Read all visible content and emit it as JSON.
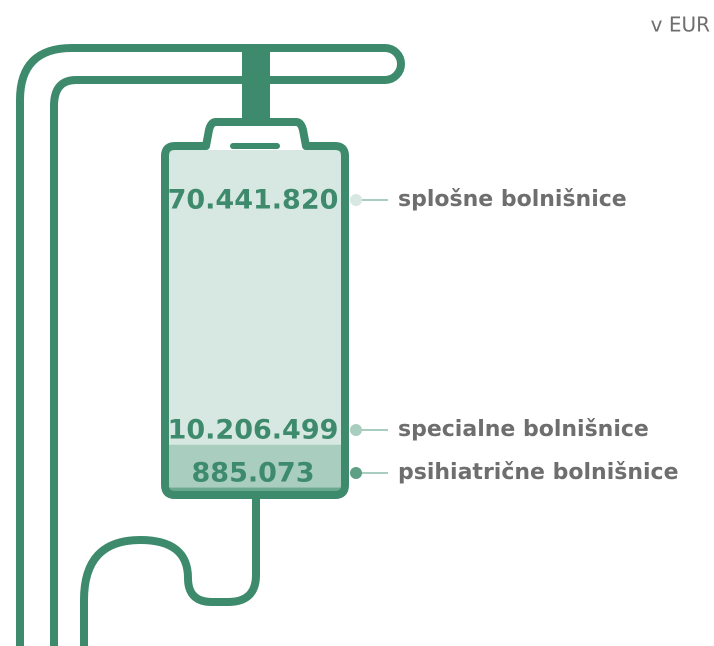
{
  "chart_data": {
    "type": "stacked-bar",
    "unit": "v EUR",
    "categories": [
      "splošne bolnišnice",
      "specialne bolnišnice",
      "psihiatrične bolnišnice"
    ],
    "values": [
      70441820,
      10206499,
      885073
    ],
    "value_labels": [
      "70.441.820",
      "10.206.499",
      "885.073"
    ],
    "colors": [
      "#d7e7e2",
      "#a9cdbf",
      "#6aa890"
    ],
    "dot_colors": [
      "#d7e7e2",
      "#a9cdbf",
      "#5f9f86"
    ]
  }
}
